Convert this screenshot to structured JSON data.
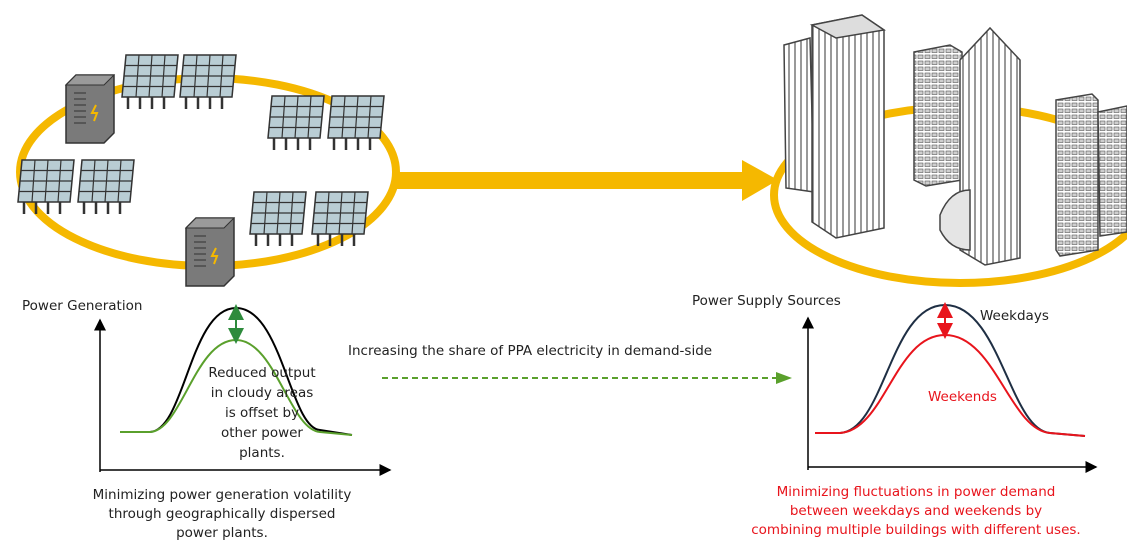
{
  "left_chart": {
    "title": "Power Generation",
    "annotation": [
      "Reduced output",
      "in cloudy areas",
      "is offset by",
      "other power",
      "plants."
    ]
  },
  "center_label": "Increasing the share of PPA electricity in demand-side",
  "left_caption": [
    "Minimizing power generation volatility",
    "through geographically dispersed",
    "power plants."
  ],
  "right_chart": {
    "title": "Power Supply Sources",
    "weekdays": "Weekdays",
    "weekends": "Weekends"
  },
  "right_caption": [
    "Minimizing fluctuations in power demand",
    "between weekdays and weekends by",
    "combining multiple buildings with different uses."
  ]
}
